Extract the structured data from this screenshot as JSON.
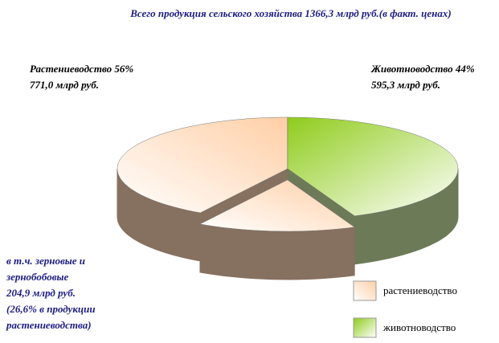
{
  "chart_data": {
    "type": "pie3d",
    "title": "Всего продукция сельского хозяйства 1366,3 млрд руб.(в факт. ценах)",
    "categories": [
      "растениеводство",
      "животноводство"
    ],
    "values": [
      771.0,
      595.3
    ],
    "colors": [
      "#ffcfa6",
      "#8fcc1c"
    ],
    "slice_labels": [
      [
        "Растениеводство 56%",
        "771,0 млрд руб."
      ],
      [
        "Животноводство 44%",
        "595,3 млрд руб."
      ]
    ],
    "exploded_value": 204.9,
    "annotation": [
      "в т.ч. зерновые и",
      "зернобобовые",
      "204,9 млрд руб.",
      "(26,6% в продукции",
      "растениеводства)"
    ]
  }
}
